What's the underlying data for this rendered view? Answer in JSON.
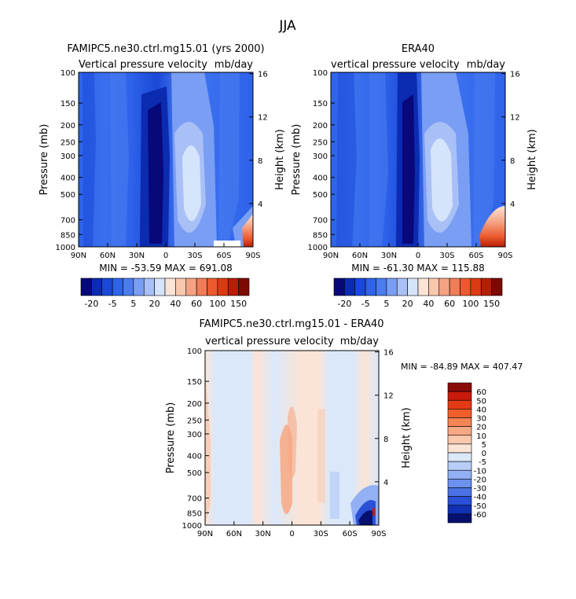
{
  "chart_data": {
    "type": "heatmap",
    "main_title": "JJA",
    "panels": [
      {
        "title": "FAMIPC5.ne30.ctrl.mg15.01 (yrs 2000)",
        "subtitle_left": "Vertical pressure velocity",
        "subtitle_right": "mb/day",
        "ylabel": "Pressure (mb)",
        "ylabel_right": "Height (km)",
        "x_ticks": [
          "90N",
          "60N",
          "30N",
          "0",
          "30S",
          "60S",
          "90S"
        ],
        "y_ticks": [
          "100",
          "150",
          "200",
          "250",
          "300",
          "400",
          "500",
          "700",
          "850",
          "1000"
        ],
        "y_ticks_right": [
          "16",
          "12",
          "8",
          "4"
        ],
        "stats": "MIN = -53.59   MAX = 691.08"
      },
      {
        "title": "ERA40",
        "subtitle_left": "vertical pressure velocity",
        "subtitle_right": "mb/day",
        "ylabel": "Pressure (mb)",
        "ylabel_right": "Height (km)",
        "x_ticks": [
          "90N",
          "60N",
          "30N",
          "0",
          "30S",
          "60S",
          "90S"
        ],
        "y_ticks": [
          "100",
          "150",
          "200",
          "250",
          "300",
          "400",
          "500",
          "700",
          "850",
          "1000"
        ],
        "y_ticks_right": [
          "16",
          "12",
          "8",
          "4"
        ],
        "stats": "MIN = -61.30   MAX = 115.88"
      },
      {
        "title": "FAMIPC5.ne30.ctrl.mg15.01 - ERA40",
        "subtitle_left": "vertical pressure velocity",
        "subtitle_right": "mb/day",
        "ylabel": "Pressure (mb)",
        "ylabel_right": "Height (km)",
        "x_ticks": [
          "90N",
          "60N",
          "30N",
          "0",
          "30S",
          "60S",
          "90S"
        ],
        "y_ticks": [
          "100",
          "150",
          "200",
          "250",
          "300",
          "400",
          "500",
          "700",
          "850",
          "1000"
        ],
        "y_ticks_right": [
          "16",
          "12",
          "8",
          "4"
        ],
        "stats": "MIN = -84.89   MAX = 407.47"
      }
    ],
    "colorbar_top": {
      "labels": [
        "-20",
        "-5",
        "5",
        "20",
        "40",
        "60",
        "100",
        "150"
      ],
      "colors": [
        "#08087a",
        "#0b2bb0",
        "#1a48d8",
        "#2e63ea",
        "#4a7cf0",
        "#7a9ef4",
        "#a9c0f7",
        "#d6e4fb",
        "#fbe4d5",
        "#f8c8ae",
        "#f5a283",
        "#f07c58",
        "#ea5a2e",
        "#dc3a12",
        "#b81d06",
        "#7c0a02"
      ]
    },
    "colorbar_diff": {
      "labels": [
        "60",
        "50",
        "40",
        "30",
        "20",
        "10",
        "5",
        "0",
        "-5",
        "-10",
        "-20",
        "-30",
        "-40",
        "-50",
        "-60"
      ],
      "colors": [
        "#8a0a0a",
        "#c81a0c",
        "#e33a16",
        "#f05e2c",
        "#f58456",
        "#f7a884",
        "#fac8ae",
        "#fbe4d5",
        "#dbe8fa",
        "#b7cdf7",
        "#92b0f3",
        "#6d91ee",
        "#4a72e6",
        "#2a50d6",
        "#1230b4",
        "#06106e"
      ]
    }
  }
}
